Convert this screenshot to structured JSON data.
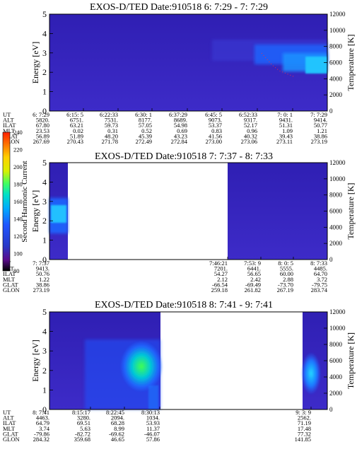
{
  "chart_data": [
    {
      "type": "heatmap",
      "title": "EXOS-D/TED   Date:910518  6: 7:29 - 7: 7:29",
      "ylabel": "Energy [eV]",
      "y2label": "Temperature [K]",
      "ylim": [
        0,
        5
      ],
      "y2lim": [
        0,
        12000
      ],
      "yticks": [
        "0",
        "1",
        "2",
        "3",
        "4",
        "5"
      ],
      "y2ticks": [
        "0",
        "2000",
        "4000",
        "6000",
        "8000",
        "10000",
        "12000"
      ],
      "data_coverage": [
        [
          0,
          1
        ]
      ],
      "rows": [
        "UT",
        "ALT",
        "ILAT",
        "MLT",
        "GLAT",
        "GLON"
      ],
      "columns": [
        {
          "UT": "6: 7:29",
          "ALT": "5820.",
          "ILAT": "67.80",
          "MLT": "23.53",
          "GLAT": "56.89",
          "GLON": "267.69"
        },
        {
          "UT": "6:15: 5",
          "ALT": "6751.",
          "ILAT": "63.21",
          "MLT": "0.02",
          "GLAT": "51.89",
          "GLON": "270.43"
        },
        {
          "UT": "6:22:33",
          "ALT": "7531.",
          "ILAT": "59.73",
          "MLT": "0.31",
          "GLAT": "48.20",
          "GLON": "271.78"
        },
        {
          "UT": "6:30: 1",
          "ALT": "8177.",
          "ILAT": "57.05",
          "MLT": "0.52",
          "GLAT": "45.39",
          "GLON": "272.49"
        },
        {
          "UT": "6:37:29",
          "ALT": "8689.",
          "ILAT": "54.98",
          "MLT": "0.69",
          "GLAT": "43.23",
          "GLON": "272.84"
        },
        {
          "UT": "6:45: 5",
          "ALT": "9073.",
          "ILAT": "53.37",
          "MLT": "0.83",
          "GLAT": "41.56",
          "GLON": "273.00"
        },
        {
          "UT": "6:52:33",
          "ALT": "9317.",
          "ILAT": "52.17",
          "MLT": "0.96",
          "GLAT": "40.32",
          "GLON": "273.06"
        },
        {
          "UT": "7: 0: 1",
          "ALT": "9431.",
          "ILAT": "51.31",
          "MLT": "1.09",
          "GLAT": "39.43",
          "GLON": "273.11"
        },
        {
          "UT": "7: 7:29",
          "ALT": "9414.",
          "ILAT": "50.77",
          "MLT": "1.21",
          "GLAT": "38.86",
          "GLON": "273.19"
        }
      ]
    },
    {
      "type": "heatmap",
      "title": "EXOS-D/TED   Date:910518  7: 7:37 - 8: 7:33",
      "ylabel": "Energy [eV]",
      "y2label": "Temperature [K]",
      "ylim": [
        0,
        5
      ],
      "y2lim": [
        0,
        12000
      ],
      "yticks": [
        "0",
        "1",
        "2",
        "3",
        "4",
        "5"
      ],
      "y2ticks": [
        "0",
        "2000",
        "4000",
        "6000",
        "8000",
        "10000",
        "12000"
      ],
      "data_coverage": [
        [
          0,
          0.065
        ],
        [
          0.66,
          1
        ]
      ],
      "rows": [
        "UT",
        "ALT",
        "ILAT",
        "MLT",
        "GLAT",
        "GLON"
      ],
      "columns": [
        {
          "UT": "7: 7:37",
          "ALT": "9413.",
          "ILAT": "50.76",
          "MLT": "1.22",
          "GLAT": "38.86",
          "GLON": "273.19"
        },
        {
          "UT": "7:46:21",
          "ALT": "7201.",
          "ILAT": "54.27",
          "MLT": "2.12",
          "GLAT": "-66.54",
          "GLON": "259.18"
        },
        {
          "UT": "7:53: 9",
          "ALT": "6441.",
          "ILAT": "56.65",
          "MLT": "2.42",
          "GLAT": "-69.49",
          "GLON": "261.82"
        },
        {
          "UT": "8: 0: 5",
          "ALT": "5555.",
          "ILAT": "60.00",
          "MLT": "2.88",
          "GLAT": "-73.70",
          "GLON": "267.19"
        },
        {
          "UT": "8: 7:33",
          "ALT": "4485.",
          "ILAT": "64.70",
          "MLT": "3.72",
          "GLAT": "-79.75",
          "GLON": "283.74"
        }
      ]
    },
    {
      "type": "heatmap",
      "title": "EXOS-D/TED   Date:910518  8: 7:41 - 9: 7:41",
      "ylabel": "Energy [eV]",
      "y2label": "Temperature [K]",
      "ylim": [
        0,
        5
      ],
      "y2lim": [
        0,
        12000
      ],
      "yticks": [
        "0",
        "1",
        "2",
        "3",
        "4",
        "5"
      ],
      "y2ticks": [
        "0",
        "2000",
        "4000",
        "6000",
        "8000",
        "10000",
        "12000"
      ],
      "data_coverage": [
        [
          0,
          0.48
        ],
        [
          0.93,
          1
        ]
      ],
      "rows": [
        "UT",
        "ALT",
        "ILAT",
        "MLT",
        "GLAT",
        "GLON"
      ],
      "columns": [
        {
          "UT": "8: 7:41",
          "ALT": "4463.",
          "ILAT": "64.79",
          "MLT": "3.74",
          "GLAT": "-79.86",
          "GLON": "284.32"
        },
        {
          "UT": "8:15:17",
          "ALT": "3280.",
          "ILAT": "69.51",
          "MLT": "5.63",
          "GLAT": "-82.72",
          "GLON": "359.68"
        },
        {
          "UT": "8:22:45",
          "ALT": "2094.",
          "ILAT": "68.28",
          "MLT": "8.99",
          "GLAT": "-69.62",
          "GLON": "46.65"
        },
        {
          "UT": "8:30:13",
          "ALT": "1034.",
          "ILAT": "53.93",
          "MLT": "11.37",
          "GLAT": "-46.07",
          "GLON": "57.86"
        },
        {
          "UT": "9: 3: 9",
          "ALT": "2562.",
          "ILAT": "71.19",
          "MLT": "17.48",
          "GLAT": "77.32",
          "GLON": "141.85"
        }
      ]
    }
  ],
  "colorbar": {
    "label": "Second Harmonic Current",
    "range": [
      80,
      240
    ],
    "ticks": [
      "80",
      "100",
      "120",
      "140",
      "160",
      "180",
      "200",
      "220",
      "240"
    ],
    "colors": [
      "#000000",
      "#5a0a8c",
      "#2838c8",
      "#1f55ff",
      "#00aaff",
      "#00e0c8",
      "#40ff60",
      "#d8f000",
      "#ffd000",
      "#ff2000"
    ]
  }
}
